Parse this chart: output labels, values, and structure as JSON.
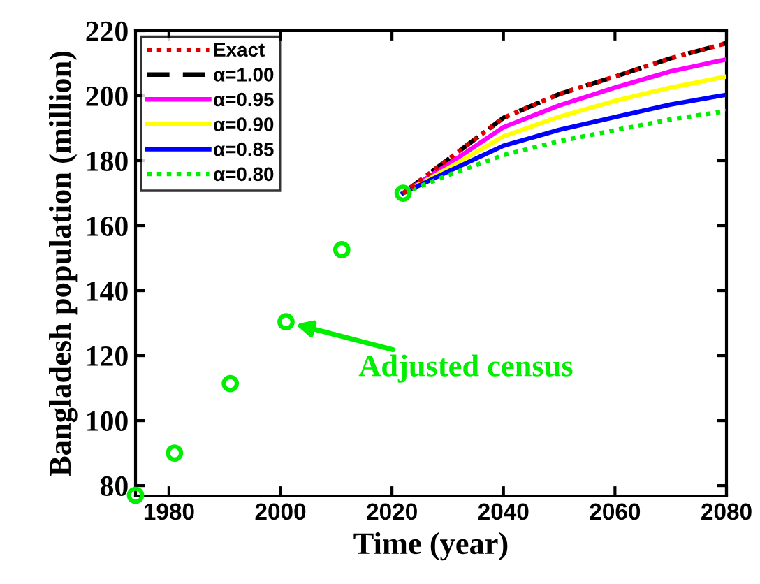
{
  "chart_data": {
    "type": "line",
    "xlabel": "Time (year)",
    "ylabel": "Bangladesh population (million)",
    "xlim": [
      1974,
      2080
    ],
    "xticks": [
      1980,
      2000,
      2020,
      2040,
      2060,
      2080
    ],
    "ylim": [
      76.8,
      220
    ],
    "yticks": [
      80,
      100,
      120,
      140,
      160,
      180,
      200,
      220
    ],
    "grid": false,
    "legend": "top left",
    "series": [
      {
        "type": "scatter",
        "color": "#00ee00",
        "marker": "circle",
        "x": [
          1974,
          1981,
          1991,
          2001,
          2011,
          2022
        ],
        "values": [
          77,
          90.0,
          111.4,
          130.4,
          152.6,
          170
        ]
      },
      {
        "name": "Exact",
        "color": "#dd0000",
        "line_style": "dotted",
        "x": [
          2022,
          2030,
          2040,
          2050,
          2060,
          2070,
          2080
        ],
        "values": [
          170,
          180.3,
          193.2,
          200.5,
          205.9,
          211.5,
          216.2
        ]
      },
      {
        "name": "α=1.00",
        "color": "#000000",
        "line_style": "dashed",
        "x": [
          2022,
          2030,
          2040,
          2050,
          2060,
          2070,
          2080
        ],
        "values": [
          170,
          180.3,
          193.2,
          200.5,
          205.9,
          211.5,
          216.2
        ]
      },
      {
        "name": "α=0.95",
        "color": "#ff00ff",
        "line_style": "solid",
        "x": [
          2022,
          2030,
          2040,
          2050,
          2060,
          2070,
          2080
        ],
        "values": [
          170,
          178.8,
          190.3,
          197,
          202.5,
          207.5,
          211.2
        ]
      },
      {
        "name": "α=0.90",
        "color": "#ffff00",
        "line_style": "solid",
        "x": [
          2022,
          2030,
          2040,
          2050,
          2060,
          2070,
          2080
        ],
        "values": [
          170,
          177.6,
          187.5,
          193.5,
          198.4,
          202.5,
          205.9
        ]
      },
      {
        "name": "α=0.85",
        "color": "#0000ff",
        "line_style": "solid",
        "x": [
          2022,
          2030,
          2040,
          2050,
          2060,
          2070,
          2080
        ],
        "values": [
          170,
          176.6,
          184.6,
          189.5,
          193.4,
          197.3,
          200.3
        ]
      },
      {
        "name": "α=0.80",
        "color": "#00ee00",
        "line_style": "dotted",
        "x": [
          2022,
          2030,
          2040,
          2050,
          2060,
          2070,
          2080
        ],
        "values": [
          170,
          175.5,
          181.7,
          186,
          189.4,
          192.7,
          195.3
        ]
      }
    ],
    "annotations": [
      {
        "text": "Adjusted census",
        "x": 2001,
        "y": 130.4
      }
    ]
  }
}
